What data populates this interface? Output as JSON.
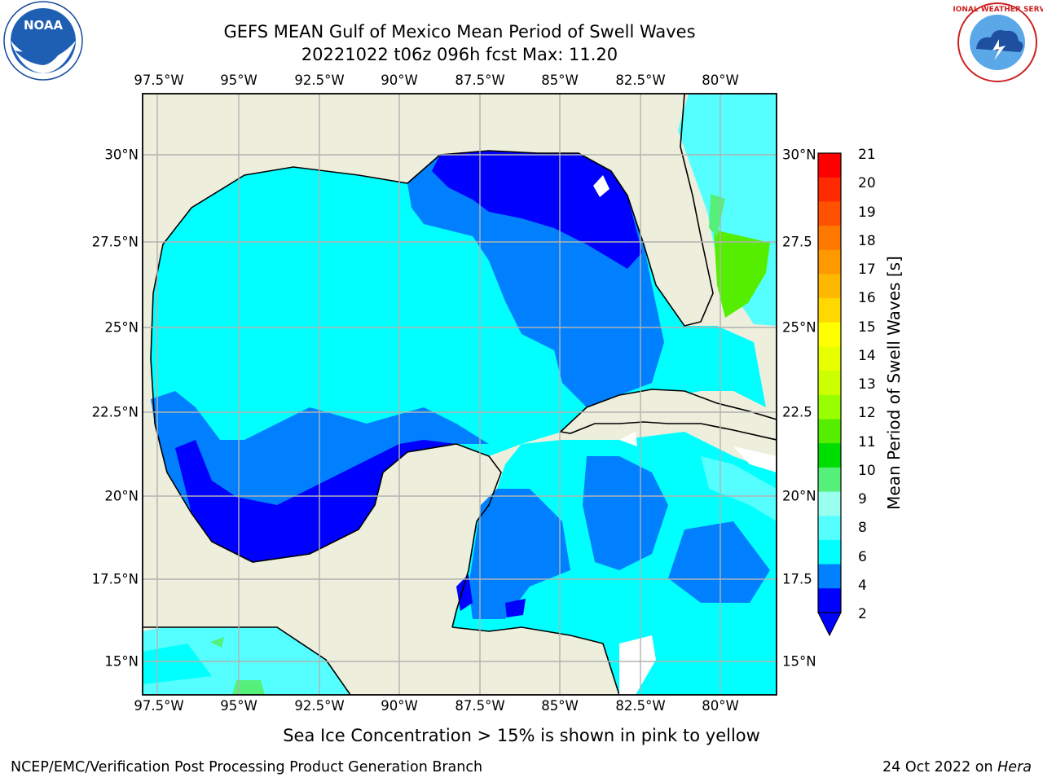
{
  "title_line1": "GEFS MEAN Gulf of Mexico Mean Period of Swell Waves",
  "title_line2": "20221022 t06z 096h fcst   Max: 11.20",
  "lon_labels": [
    "97.5°W",
    "95°W",
    "92.5°W",
    "90°W",
    "87.5°W",
    "85°W",
    "82.5°W",
    "80°W"
  ],
  "lat_labels_left": [
    "30°N",
    "27.5°N",
    "25°N",
    "22.5°N",
    "20°N",
    "17.5°N",
    "15°N"
  ],
  "lat_labels_right": [
    "30°N",
    "27.5",
    "25°N",
    "22.5",
    "20°N",
    "17.5",
    "15°N"
  ],
  "colorbar": {
    "label": "Mean Period of Swell Waves [s]",
    "ticks": [
      "21",
      "20",
      "19",
      "18",
      "17",
      "16",
      "15",
      "14",
      "13",
      "12",
      "11",
      "10",
      "9",
      "8",
      "6",
      "4",
      "2"
    ],
    "colors": [
      "#ff0000",
      "#ff2a00",
      "#ff5200",
      "#ff7800",
      "#ff9900",
      "#ffb800",
      "#ffd800",
      "#ffff00",
      "#e8ff00",
      "#ccff00",
      "#99ff00",
      "#55ee00",
      "#00dd00",
      "#55f07a",
      "#99ffee",
      "#55ffff",
      "#00ffff",
      "#0080ff",
      "#0000ff"
    ],
    "extend_color": "#0000ff"
  },
  "map_colors": {
    "land": "#eeeedd",
    "coast": "#000000",
    "grid": "#b2b2b2"
  },
  "note": "Sea Ice Concentration > 15% is shown in pink to yellow",
  "credit": "NCEP/EMC/Verification Post Processing Product Generation Branch",
  "datestamp_prefix": "24 Oct 2022 on ",
  "datestamp_host": "Hera",
  "logos": {
    "left": "NOAA",
    "right": "NATIONAL WEATHER SERVICE"
  }
}
